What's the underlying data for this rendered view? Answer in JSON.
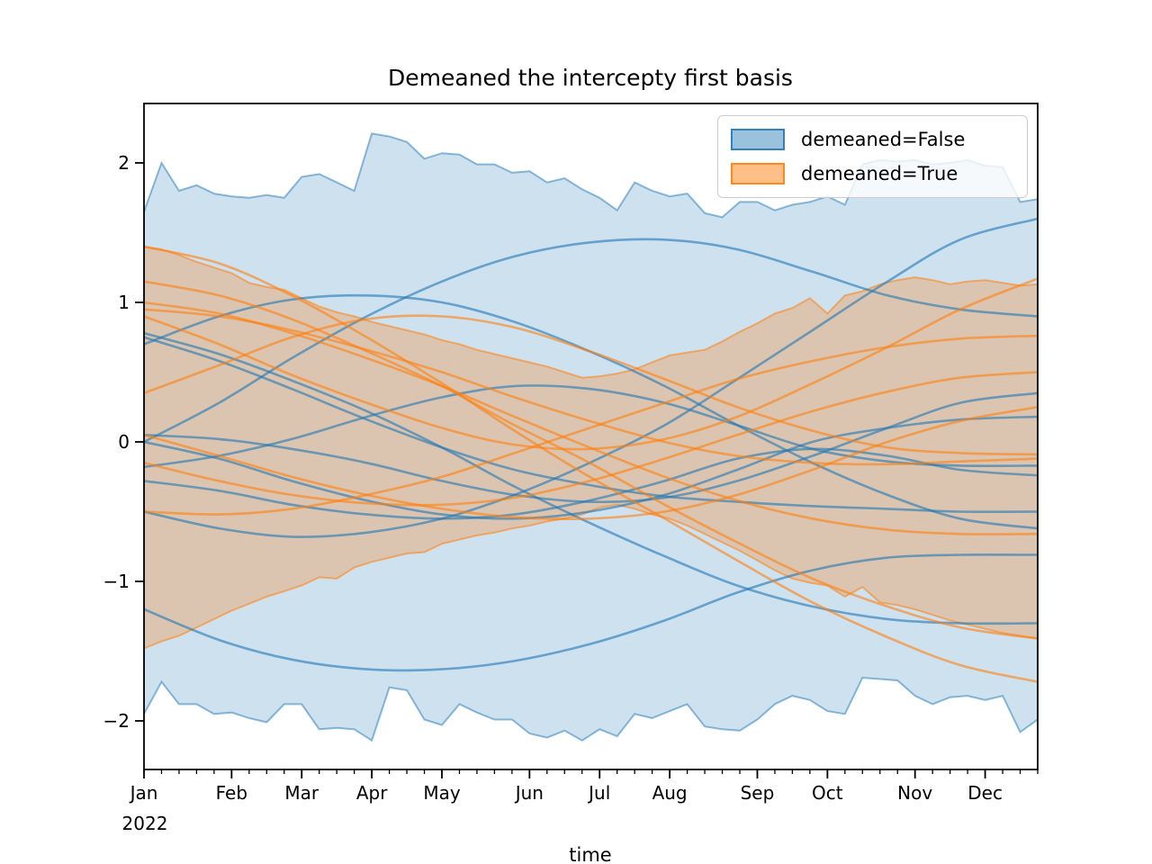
{
  "chart_data": {
    "type": "line",
    "title": "Demeaned the intercepty first basis",
    "xlabel": "time",
    "x_first_tick_year": "2022",
    "x_unit": "weekly Mondays, Jan 3 - Dec 26, 2022 (day-of-year)",
    "xlim_days": [
      2,
      359
    ],
    "ylim": [
      -2.35,
      2.43
    ],
    "grid": false,
    "legend_position": "upper right",
    "y_ticks": [
      2,
      1,
      0,
      -1,
      -2
    ],
    "y_tick_labels": [
      "2",
      "1",
      "0",
      "−1",
      "−2"
    ],
    "x_major_ticks_days": [
      2,
      37,
      65,
      93,
      121,
      156,
      184,
      212,
      247,
      275,
      310,
      338
    ],
    "x_tick_labels": [
      "Jan",
      "Feb",
      "Mar",
      "Apr",
      "May",
      "Jun",
      "Jul",
      "Aug",
      "Sep",
      "Oct",
      "Nov",
      "Dec"
    ],
    "x_minor_ticks_days": [
      2,
      9,
      16,
      23,
      30,
      37,
      44,
      51,
      58,
      65,
      72,
      79,
      86,
      93,
      100,
      107,
      114,
      121,
      128,
      135,
      142,
      149,
      156,
      163,
      170,
      177,
      184,
      191,
      198,
      205,
      212,
      219,
      226,
      233,
      240,
      247,
      254,
      261,
      268,
      275,
      282,
      289,
      296,
      303,
      310,
      317,
      324,
      331,
      338,
      345,
      352,
      359
    ],
    "band_x_days": [
      2,
      9,
      16,
      23,
      30,
      37,
      44,
      51,
      58,
      65,
      72,
      79,
      86,
      93,
      100,
      107,
      114,
      121,
      128,
      135,
      142,
      149,
      156,
      163,
      170,
      177,
      184,
      191,
      198,
      205,
      212,
      219,
      226,
      233,
      240,
      247,
      254,
      261,
      268,
      275,
      282,
      289,
      296,
      303,
      310,
      317,
      324,
      331,
      338,
      345,
      352,
      359
    ],
    "bands": [
      {
        "name": "demeaned=False",
        "color": "#1f77b4",
        "fill_alpha": 0.22,
        "edge_alpha": 0.5,
        "upper": [
          1.65,
          2.0,
          1.8,
          1.84,
          1.78,
          1.76,
          1.75,
          1.77,
          1.75,
          1.9,
          1.92,
          1.86,
          1.8,
          2.21,
          2.19,
          2.15,
          2.03,
          2.07,
          2.06,
          1.99,
          1.99,
          1.93,
          1.94,
          1.86,
          1.89,
          1.81,
          1.75,
          1.66,
          1.86,
          1.8,
          1.76,
          1.78,
          1.64,
          1.61,
          1.72,
          1.72,
          1.66,
          1.7,
          1.72,
          1.76,
          1.7,
          1.99,
          2.02,
          2.01,
          2.02,
          1.99,
          2.0,
          2.02,
          1.98,
          1.97,
          1.72,
          1.74
        ],
        "lower": [
          -1.95,
          -1.72,
          -1.88,
          -1.88,
          -1.95,
          -1.94,
          -1.98,
          -2.01,
          -1.88,
          -1.88,
          -2.06,
          -2.05,
          -2.06,
          -2.14,
          -1.76,
          -1.78,
          -1.99,
          -2.03,
          -1.88,
          -1.94,
          -1.99,
          -1.99,
          -2.09,
          -2.12,
          -2.07,
          -2.14,
          -2.06,
          -2.11,
          -1.95,
          -1.98,
          -1.93,
          -1.88,
          -2.04,
          -2.06,
          -2.07,
          -1.99,
          -1.88,
          -1.82,
          -1.85,
          -1.93,
          -1.95,
          -1.69,
          -1.7,
          -1.71,
          -1.82,
          -1.88,
          -1.83,
          -1.82,
          -1.85,
          -1.82,
          -2.08,
          -1.99
        ]
      },
      {
        "name": "demeaned=True",
        "color": "#ff7f0e",
        "fill_alpha": 0.28,
        "edge_alpha": 0.55,
        "upper": [
          1.4,
          1.38,
          1.34,
          1.29,
          1.25,
          1.21,
          1.14,
          1.11,
          1.09,
          1.03,
          0.97,
          0.93,
          0.9,
          0.86,
          0.83,
          0.8,
          0.77,
          0.73,
          0.7,
          0.66,
          0.63,
          0.6,
          0.57,
          0.54,
          0.5,
          0.46,
          0.47,
          0.49,
          0.52,
          0.57,
          0.62,
          0.64,
          0.66,
          0.72,
          0.79,
          0.85,
          0.92,
          0.96,
          1.03,
          0.92,
          1.05,
          1.08,
          1.13,
          1.16,
          1.18,
          1.16,
          1.13,
          1.15,
          1.16,
          1.14,
          1.12,
          1.13
        ],
        "lower": [
          -1.48,
          -1.43,
          -1.39,
          -1.33,
          -1.27,
          -1.21,
          -1.16,
          -1.11,
          -1.07,
          -1.03,
          -0.97,
          -0.98,
          -0.9,
          -0.86,
          -0.83,
          -0.8,
          -0.79,
          -0.73,
          -0.7,
          -0.67,
          -0.65,
          -0.62,
          -0.6,
          -0.57,
          -0.55,
          -0.52,
          -0.47,
          -0.45,
          -0.48,
          -0.52,
          -0.55,
          -0.6,
          -0.66,
          -0.72,
          -0.78,
          -0.85,
          -0.92,
          -0.98,
          -1.01,
          -1.03,
          -1.11,
          -1.04,
          -1.15,
          -1.17,
          -1.2,
          -1.24,
          -1.28,
          -1.31,
          -1.34,
          -1.37,
          -1.39,
          -1.41
        ]
      }
    ],
    "line_x_days": [
      2,
      32,
      61,
      91,
      121,
      150,
      180,
      210,
      239,
      269,
      299,
      328,
      359
    ],
    "series": [
      {
        "name": "false-1",
        "group": "demeaned=False",
        "color": "#1f77b4",
        "y": [
          0.0,
          0.28,
          0.6,
          0.9,
          1.15,
          1.33,
          1.43,
          1.45,
          1.38,
          1.22,
          1.05,
          0.95,
          0.9
        ]
      },
      {
        "name": "false-2",
        "group": "demeaned=False",
        "color": "#1f77b4",
        "y": [
          0.7,
          0.9,
          1.02,
          1.05,
          1.0,
          0.86,
          0.65,
          0.4,
          0.12,
          -0.15,
          -0.38,
          -0.55,
          -0.62
        ]
      },
      {
        "name": "false-3",
        "group": "demeaned=False",
        "color": "#1f77b4",
        "y": [
          0.78,
          0.63,
          0.44,
          0.22,
          -0.04,
          -0.32,
          -0.58,
          -0.82,
          -1.03,
          -1.18,
          -1.27,
          -1.3,
          -1.3
        ]
      },
      {
        "name": "false-4",
        "group": "demeaned=False",
        "color": "#1f77b4",
        "y": [
          0.05,
          0.02,
          -0.05,
          -0.15,
          -0.28,
          -0.38,
          -0.43,
          -0.4,
          -0.28,
          -0.1,
          0.1,
          0.28,
          0.35
        ]
      },
      {
        "name": "false-5",
        "group": "demeaned=False",
        "color": "#1f77b4",
        "y": [
          0.0,
          -0.12,
          -0.28,
          -0.42,
          -0.52,
          -0.55,
          -0.5,
          -0.38,
          -0.2,
          0.0,
          0.1,
          0.16,
          0.18
        ]
      },
      {
        "name": "false-6",
        "group": "demeaned=False",
        "color": "#1f77b4",
        "y": [
          -0.18,
          -0.1,
          0.02,
          0.18,
          0.32,
          0.4,
          0.38,
          0.28,
          0.12,
          -0.05,
          -0.14,
          -0.17,
          -0.17
        ]
      },
      {
        "name": "false-7",
        "group": "demeaned=False",
        "color": "#1f77b4",
        "y": [
          -0.28,
          -0.35,
          -0.45,
          -0.52,
          -0.55,
          -0.52,
          -0.42,
          -0.28,
          -0.12,
          -0.05,
          -0.1,
          -0.2,
          -0.24
        ]
      },
      {
        "name": "false-8",
        "group": "demeaned=False",
        "color": "#1f77b4",
        "y": [
          -1.2,
          -1.42,
          -1.56,
          -1.63,
          -1.63,
          -1.57,
          -1.45,
          -1.28,
          -1.08,
          -0.92,
          -0.83,
          -0.81,
          -0.81
        ]
      },
      {
        "name": "false-9",
        "group": "demeaned=False",
        "color": "#1f77b4",
        "y": [
          -0.5,
          -0.62,
          -0.68,
          -0.65,
          -0.55,
          -0.38,
          -0.15,
          0.12,
          0.45,
          0.8,
          1.15,
          1.45,
          1.6
        ]
      },
      {
        "name": "false-10",
        "group": "demeaned=False",
        "color": "#1f77b4",
        "y": [
          0.75,
          0.58,
          0.38,
          0.16,
          -0.04,
          -0.2,
          -0.31,
          -0.39,
          -0.43,
          -0.46,
          -0.48,
          -0.5,
          -0.5
        ]
      },
      {
        "name": "true-1",
        "group": "demeaned=True",
        "color": "#ff7f0e",
        "y": [
          1.4,
          1.28,
          1.05,
          0.75,
          0.42,
          0.08,
          -0.25,
          -0.55,
          -0.85,
          -1.15,
          -1.4,
          -1.6,
          -1.72
        ]
      },
      {
        "name": "true-2",
        "group": "demeaned=True",
        "color": "#ff7f0e",
        "y": [
          1.15,
          1.05,
          0.88,
          0.65,
          0.4,
          0.12,
          -0.15,
          -0.45,
          -0.72,
          -0.98,
          -1.18,
          -1.33,
          -1.41
        ]
      },
      {
        "name": "true-3",
        "group": "demeaned=True",
        "color": "#ff7f0e",
        "y": [
          1.0,
          0.92,
          0.78,
          0.6,
          0.4,
          0.18,
          -0.04,
          -0.25,
          -0.42,
          -0.55,
          -0.63,
          -0.66,
          -0.66
        ]
      },
      {
        "name": "true-4",
        "group": "demeaned=True",
        "color": "#ff7f0e",
        "y": [
          0.95,
          0.9,
          0.8,
          0.66,
          0.5,
          0.32,
          0.15,
          0.0,
          -0.1,
          -0.15,
          -0.16,
          -0.14,
          -0.12
        ]
      },
      {
        "name": "true-5",
        "group": "demeaned=True",
        "color": "#ff7f0e",
        "y": [
          0.35,
          0.55,
          0.75,
          0.88,
          0.9,
          0.82,
          0.65,
          0.45,
          0.25,
          0.08,
          -0.04,
          -0.08,
          -0.09
        ]
      },
      {
        "name": "true-6",
        "group": "demeaned=True",
        "color": "#ff7f0e",
        "y": [
          0.05,
          -0.1,
          -0.25,
          -0.38,
          -0.48,
          -0.54,
          -0.55,
          -0.5,
          -0.38,
          -0.2,
          0.0,
          0.15,
          0.25
        ]
      },
      {
        "name": "true-7",
        "group": "demeaned=True",
        "color": "#ff7f0e",
        "y": [
          -0.15,
          -0.28,
          -0.38,
          -0.44,
          -0.45,
          -0.4,
          -0.28,
          -0.12,
          0.05,
          0.22,
          0.36,
          0.46,
          0.5
        ]
      },
      {
        "name": "true-8",
        "group": "demeaned=True",
        "color": "#ff7f0e",
        "y": [
          -0.5,
          -0.52,
          -0.48,
          -0.38,
          -0.25,
          -0.08,
          0.1,
          0.28,
          0.45,
          0.58,
          0.68,
          0.74,
          0.76
        ]
      },
      {
        "name": "true-9",
        "group": "demeaned=True",
        "color": "#ff7f0e",
        "y": [
          0.9,
          0.7,
          0.48,
          0.28,
          0.1,
          -0.02,
          -0.05,
          0.02,
          0.18,
          0.42,
          0.68,
          0.95,
          1.17
        ]
      }
    ],
    "legend": {
      "entries": [
        {
          "label": "demeaned=False",
          "fill": "rgba(31,119,180,0.45)",
          "border": "rgba(31,119,180,0.85)"
        },
        {
          "label": "demeaned=True",
          "fill": "rgba(255,127,14,0.5)",
          "border": "rgba(255,127,14,0.85)"
        }
      ]
    },
    "axis_color": "#000000"
  }
}
